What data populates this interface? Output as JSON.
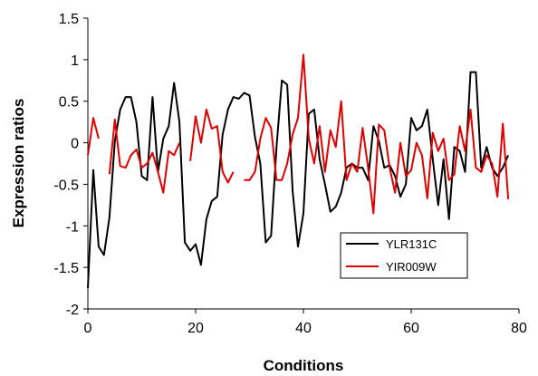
{
  "chart_data": {
    "type": "line",
    "title": "",
    "xlabel": "Conditions",
    "ylabel": "Expression ratios",
    "xlim": [
      0,
      80
    ],
    "ylim": [
      -2,
      1.5
    ],
    "xticks": [
      "0",
      "20",
      "40",
      "60",
      "80"
    ],
    "yticks": [
      "-2",
      "-1.5",
      "-1",
      "-0.5",
      "0",
      "0.5",
      "1",
      "1.5"
    ],
    "grid": false,
    "legend_position": "lower-right",
    "series": [
      {
        "name": "YLR131C",
        "color": "#000000",
        "x": [
          0,
          1,
          2,
          3,
          4,
          5,
          6,
          7,
          8,
          9,
          10,
          11,
          12,
          13,
          14,
          15,
          16,
          17,
          18,
          19,
          20,
          21,
          22,
          23,
          24,
          25,
          26,
          27,
          28,
          29,
          30,
          31,
          32,
          33,
          34,
          35,
          36,
          37,
          38,
          39,
          40,
          41,
          42,
          43,
          44,
          45,
          46,
          47,
          48,
          49,
          50,
          51,
          52,
          53,
          54,
          55,
          56,
          57,
          58,
          59,
          60,
          61,
          62,
          63,
          64,
          65,
          66,
          67,
          68,
          69,
          70,
          71,
          72,
          73,
          74,
          75,
          76,
          77,
          78
        ],
        "values": [
          -1.75,
          -0.33,
          -1.25,
          -1.35,
          -0.9,
          0.02,
          0.4,
          0.55,
          0.55,
          0.25,
          -0.4,
          -0.45,
          0.55,
          -0.35,
          0.05,
          0.2,
          0.72,
          0.25,
          -1.2,
          -1.3,
          -1.22,
          -1.47,
          -0.92,
          -0.7,
          -0.65,
          0.1,
          0.4,
          0.55,
          0.53,
          0.6,
          0.57,
          0.07,
          -0.25,
          -1.2,
          -1.12,
          -0.05,
          0.75,
          0.7,
          -0.58,
          -1.25,
          -0.85,
          0.35,
          0.4,
          -0.2,
          -0.5,
          -0.83,
          -0.77,
          -0.6,
          -0.3,
          -0.25,
          -0.3,
          -0.3,
          -0.45,
          0.2,
          0.02,
          -0.3,
          -0.27,
          -0.4,
          -0.65,
          -0.5,
          0.3,
          0.15,
          0.2,
          0.4,
          -0.2,
          -0.75,
          -0.2,
          -0.92,
          -0.05,
          -0.1,
          -0.35,
          0.85,
          0.85,
          -0.3,
          -0.05,
          -0.3,
          -0.4,
          -0.3,
          -0.15
        ]
      },
      {
        "name": "YIR009W",
        "color": "#e00000",
        "x": [
          0,
          1,
          2,
          null,
          4,
          5,
          6,
          7,
          8,
          9,
          10,
          11,
          12,
          13,
          14,
          15,
          16,
          17,
          null,
          19,
          20,
          21,
          22,
          23,
          24,
          25,
          26,
          27,
          null,
          29,
          30,
          31,
          32,
          33,
          34,
          35,
          36,
          37,
          38,
          39,
          40,
          41,
          42,
          43,
          44,
          45,
          46,
          47,
          48,
          49,
          50,
          51,
          52,
          53,
          54,
          55,
          56,
          57,
          58,
          59,
          60,
          61,
          62,
          63,
          64,
          65,
          66,
          67,
          68,
          69,
          70,
          71,
          72,
          73,
          74,
          75,
          76,
          77,
          78
        ],
        "values": [
          -0.15,
          0.3,
          0.05,
          null,
          -0.38,
          0.28,
          -0.28,
          -0.3,
          -0.15,
          -0.08,
          -0.3,
          -0.25,
          -0.12,
          -0.35,
          -0.6,
          -0.1,
          -0.15,
          0.0,
          null,
          -0.22,
          0.32,
          0.0,
          0.4,
          0.17,
          0.2,
          -0.35,
          -0.48,
          -0.35,
          null,
          -0.45,
          -0.45,
          -0.35,
          0.05,
          0.3,
          0.18,
          -0.45,
          -0.45,
          -0.25,
          0.1,
          0.3,
          1.06,
          0.05,
          -0.25,
          0.2,
          -0.35,
          0.15,
          -0.05,
          0.5,
          -0.45,
          -0.25,
          -0.35,
          0.18,
          -0.3,
          -0.85,
          0.22,
          0.15,
          -0.3,
          -0.6,
          0.0,
          -0.4,
          -0.33,
          0.0,
          -0.15,
          -0.67,
          0.12,
          -0.1,
          0.05,
          -0.45,
          -0.38,
          0.2,
          -0.1,
          0.4,
          -0.3,
          -0.35,
          -0.15,
          -0.25,
          -0.65,
          0.23,
          -0.68
        ]
      }
    ]
  }
}
